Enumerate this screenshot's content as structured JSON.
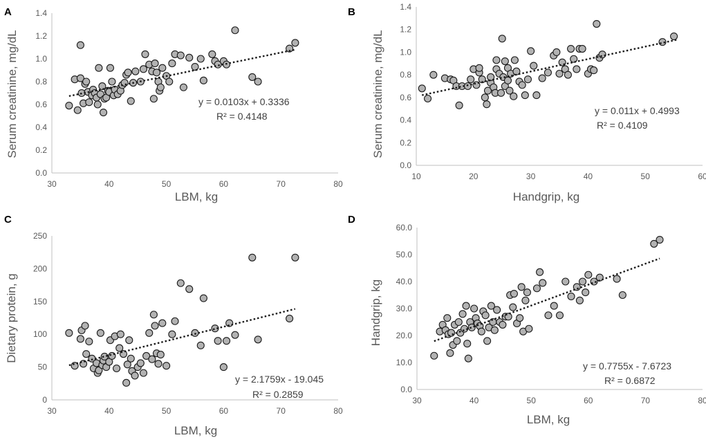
{
  "chart_data": [
    {
      "type": "scatter",
      "panel_label": "A",
      "xlabel": "LBM, kg",
      "ylabel": "Serum creatinine, mg/dL",
      "xlim": [
        30,
        80
      ],
      "ylim": [
        0,
        1.4
      ],
      "x_ticks": [
        "30",
        "40",
        "50",
        "60",
        "70",
        "80"
      ],
      "y_ticks": [
        "0.0",
        "0.2",
        "0.4",
        "0.6",
        "0.8",
        "1.0",
        "1.2",
        "1.4"
      ],
      "trendline": {
        "slope": 0.0103,
        "intercept": 0.3336,
        "x_range": [
          33,
          72.5
        ]
      },
      "equation": "y = 0.0103x + 0.3336",
      "r2": "R² = 0.4148",
      "points": [
        [
          33,
          0.59
        ],
        [
          34,
          0.82
        ],
        [
          34.5,
          0.55
        ],
        [
          35,
          0.83
        ],
        [
          35,
          1.12
        ],
        [
          35.2,
          0.7
        ],
        [
          35.5,
          0.61
        ],
        [
          35.8,
          0.78
        ],
        [
          36,
          0.8
        ],
        [
          36.3,
          0.71
        ],
        [
          36.5,
          0.62
        ],
        [
          37,
          0.68
        ],
        [
          37.2,
          0.73
        ],
        [
          37.5,
          0.7
        ],
        [
          37.8,
          0.66
        ],
        [
          38,
          0.6
        ],
        [
          38.2,
          0.92
        ],
        [
          38.5,
          0.69
        ],
        [
          38.8,
          0.76
        ],
        [
          39,
          0.53
        ],
        [
          39.2,
          0.65
        ],
        [
          39.5,
          0.66
        ],
        [
          39.8,
          0.72
        ],
        [
          40,
          0.71
        ],
        [
          40.2,
          0.92
        ],
        [
          40.5,
          0.8
        ],
        [
          40.8,
          0.68
        ],
        [
          41,
          0.73
        ],
        [
          41.5,
          0.69
        ],
        [
          42,
          0.72
        ],
        [
          42.3,
          0.77
        ],
        [
          42.7,
          0.79
        ],
        [
          43,
          0.86
        ],
        [
          43.3,
          0.88
        ],
        [
          43.8,
          0.63
        ],
        [
          44.2,
          0.79
        ],
        [
          44.6,
          0.89
        ],
        [
          45.5,
          0.8
        ],
        [
          46,
          0.91
        ],
        [
          46.3,
          1.04
        ],
        [
          47,
          0.95
        ],
        [
          47.5,
          0.89
        ],
        [
          47.8,
          0.65
        ],
        [
          48,
          0.96
        ],
        [
          48.3,
          0.88
        ],
        [
          48.6,
          0.8
        ],
        [
          48.8,
          0.72
        ],
        [
          49,
          0.75
        ],
        [
          49.3,
          0.92
        ],
        [
          50,
          0.85
        ],
        [
          50.5,
          0.8
        ],
        [
          51,
          0.96
        ],
        [
          51.5,
          1.04
        ],
        [
          52.5,
          1.03
        ],
        [
          53,
          0.75
        ],
        [
          54,
          1.01
        ],
        [
          55,
          0.93
        ],
        [
          56,
          1.0
        ],
        [
          56.5,
          0.81
        ],
        [
          58,
          1.04
        ],
        [
          58.5,
          0.98
        ],
        [
          59,
          0.95
        ],
        [
          60,
          0.98
        ],
        [
          60.5,
          0.95
        ],
        [
          62,
          1.25
        ],
        [
          65,
          0.84
        ],
        [
          66,
          0.8
        ],
        [
          71.5,
          1.09
        ],
        [
          72.5,
          1.14
        ]
      ]
    },
    {
      "type": "scatter",
      "panel_label": "B",
      "xlabel": "Handgrip, kg",
      "ylabel": "Serum creatinine, mg/dL",
      "xlim": [
        10,
        60
      ],
      "ylim": [
        0,
        1.4
      ],
      "x_ticks": [
        "10",
        "20",
        "30",
        "40",
        "50",
        "60"
      ],
      "y_ticks": [
        "0.0",
        "0.2",
        "0.4",
        "0.6",
        "0.8",
        "1.0",
        "1.2",
        "1.4"
      ],
      "trendline": {
        "slope": 0.011,
        "intercept": 0.4993,
        "x_range": [
          11,
          55.5
        ]
      },
      "equation": "y = 0.011x + 0.4993",
      "r2": "R² = 0.4109",
      "points": [
        [
          11,
          0.68
        ],
        [
          12,
          0.59
        ],
        [
          13,
          0.8
        ],
        [
          15,
          0.77
        ],
        [
          16,
          0.76
        ],
        [
          16.5,
          0.75
        ],
        [
          17,
          0.7
        ],
        [
          17.5,
          0.53
        ],
        [
          18,
          0.7
        ],
        [
          19,
          0.7
        ],
        [
          19.5,
          0.76
        ],
        [
          20,
          0.85
        ],
        [
          20.5,
          0.71
        ],
        [
          21,
          0.82
        ],
        [
          21,
          0.86
        ],
        [
          21.5,
          0.76
        ],
        [
          22,
          0.6
        ],
        [
          22.3,
          0.54
        ],
        [
          22.5,
          0.66
        ],
        [
          23,
          0.73
        ],
        [
          23,
          0.78
        ],
        [
          23.5,
          0.69
        ],
        [
          23.8,
          0.64
        ],
        [
          24,
          0.93
        ],
        [
          24,
          0.85
        ],
        [
          24.5,
          0.81
        ],
        [
          24.8,
          0.64
        ],
        [
          25,
          1.12
        ],
        [
          25.2,
          0.78
        ],
        [
          25.5,
          0.92
        ],
        [
          25.5,
          0.7
        ],
        [
          26,
          0.86
        ],
        [
          26,
          0.75
        ],
        [
          26.3,
          0.66
        ],
        [
          26.5,
          0.81
        ],
        [
          27,
          0.61
        ],
        [
          27.2,
          0.93
        ],
        [
          27.5,
          0.83
        ],
        [
          28,
          0.74
        ],
        [
          28.5,
          0.71
        ],
        [
          29,
          0.62
        ],
        [
          29.5,
          0.76
        ],
        [
          30,
          1.01
        ],
        [
          30.5,
          0.88
        ],
        [
          31,
          0.62
        ],
        [
          32,
          0.77
        ],
        [
          33,
          0.82
        ],
        [
          34,
          0.97
        ],
        [
          34.5,
          1.0
        ],
        [
          35,
          0.81
        ],
        [
          35.5,
          0.91
        ],
        [
          36,
          0.85
        ],
        [
          36.5,
          0.8
        ],
        [
          37,
          1.03
        ],
        [
          37.5,
          0.94
        ],
        [
          38,
          0.85
        ],
        [
          38.5,
          1.03
        ],
        [
          39,
          1.03
        ],
        [
          40,
          0.81
        ],
        [
          40.5,
          0.85
        ],
        [
          41,
          0.84
        ],
        [
          41.5,
          1.25
        ],
        [
          42,
          0.95
        ],
        [
          42.5,
          0.98
        ],
        [
          53,
          1.09
        ],
        [
          55,
          1.14
        ]
      ]
    },
    {
      "type": "scatter",
      "panel_label": "C",
      "xlabel": "LBM, kg",
      "ylabel": "Dietary protein, g",
      "xlim": [
        30,
        80
      ],
      "ylim": [
        0,
        250
      ],
      "x_ticks": [
        "30",
        "40",
        "50",
        "60",
        "70",
        "80"
      ],
      "y_ticks": [
        "0",
        "50",
        "100",
        "150",
        "200",
        "250"
      ],
      "trendline": {
        "slope": 2.1759,
        "intercept": -19.045,
        "x_range": [
          33,
          72.5
        ]
      },
      "equation": "y = 2.1759x - 19.045",
      "r2": "R² = 0.2859",
      "points": [
        [
          33,
          102
        ],
        [
          34,
          52
        ],
        [
          35,
          93
        ],
        [
          35.2,
          106
        ],
        [
          35.5,
          55
        ],
        [
          35.8,
          113
        ],
        [
          36,
          70
        ],
        [
          36.5,
          89
        ],
        [
          37,
          63
        ],
        [
          37.3,
          48
        ],
        [
          37.8,
          56
        ],
        [
          38,
          41
        ],
        [
          38.2,
          45
        ],
        [
          38.5,
          102
        ],
        [
          38.8,
          53
        ],
        [
          39,
          60
        ],
        [
          39.2,
          66
        ],
        [
          39.5,
          50
        ],
        [
          40,
          58
        ],
        [
          40.2,
          91
        ],
        [
          40.5,
          67
        ],
        [
          41,
          97
        ],
        [
          41.3,
          48
        ],
        [
          41.8,
          79
        ],
        [
          42,
          100
        ],
        [
          42.5,
          70
        ],
        [
          43,
          26
        ],
        [
          43.2,
          54
        ],
        [
          43.5,
          91
        ],
        [
          43.8,
          63
        ],
        [
          44,
          44
        ],
        [
          44.5,
          37
        ],
        [
          45,
          50
        ],
        [
          45.5,
          56
        ],
        [
          46,
          41
        ],
        [
          46.5,
          67
        ],
        [
          47,
          102
        ],
        [
          47.5,
          62
        ],
        [
          47.8,
          130
        ],
        [
          48,
          113
        ],
        [
          48.3,
          71
        ],
        [
          48.6,
          55
        ],
        [
          49,
          69
        ],
        [
          49.3,
          117
        ],
        [
          50,
          52
        ],
        [
          51,
          100
        ],
        [
          51.5,
          120
        ],
        [
          52.5,
          178
        ],
        [
          54,
          169
        ],
        [
          55,
          102
        ],
        [
          56,
          83
        ],
        [
          56.5,
          155
        ],
        [
          58.5,
          109
        ],
        [
          59,
          90
        ],
        [
          60,
          50
        ],
        [
          60.5,
          90
        ],
        [
          61,
          117
        ],
        [
          62,
          99
        ],
        [
          65,
          217
        ],
        [
          66,
          92
        ],
        [
          71.5,
          124
        ],
        [
          72.5,
          217
        ]
      ]
    },
    {
      "type": "scatter",
      "panel_label": "D",
      "xlabel": "LBM, kg",
      "ylabel": "Handgrip, kg",
      "xlim": [
        30,
        80
      ],
      "ylim": [
        0,
        60
      ],
      "x_ticks": [
        "30",
        "40",
        "50",
        "60",
        "70",
        "80"
      ],
      "y_ticks": [
        "0.0",
        "10.0",
        "20.0",
        "30.0",
        "40.0",
        "50.0",
        "60.0"
      ],
      "trendline": {
        "slope": 0.7755,
        "intercept": -7.6723,
        "x_range": [
          33,
          72.5
        ]
      },
      "equation": "y = 0.7755x - 7.6723",
      "r2": "R² = 0.6872",
      "points": [
        [
          33,
          12.5
        ],
        [
          34,
          21.5
        ],
        [
          34.5,
          24
        ],
        [
          35,
          22
        ],
        [
          35.3,
          26.5
        ],
        [
          35.5,
          20.5
        ],
        [
          35.8,
          13.5
        ],
        [
          36,
          21
        ],
        [
          36.3,
          16.5
        ],
        [
          36.6,
          24
        ],
        [
          37,
          18
        ],
        [
          37.3,
          25
        ],
        [
          37.6,
          21
        ],
        [
          38,
          28
        ],
        [
          38.3,
          22.5
        ],
        [
          38.6,
          31
        ],
        [
          38.8,
          17
        ],
        [
          39,
          11.5
        ],
        [
          39.3,
          25
        ],
        [
          39.6,
          23
        ],
        [
          40,
          30
        ],
        [
          40.3,
          26.5
        ],
        [
          40.6,
          24.5
        ],
        [
          41,
          23.5
        ],
        [
          41.3,
          21.5
        ],
        [
          41.6,
          29
        ],
        [
          42,
          27.5
        ],
        [
          42.3,
          18
        ],
        [
          42.6,
          23
        ],
        [
          43,
          31
        ],
        [
          43.3,
          25
        ],
        [
          43.6,
          22
        ],
        [
          44,
          29.5
        ],
        [
          44.5,
          25
        ],
        [
          45,
          24
        ],
        [
          45.5,
          27
        ],
        [
          46,
          27
        ],
        [
          46.3,
          35
        ],
        [
          46.8,
          30.5
        ],
        [
          47,
          35.5
        ],
        [
          47.5,
          24.5
        ],
        [
          48,
          26.5
        ],
        [
          48.3,
          38
        ],
        [
          48.6,
          21.5
        ],
        [
          49,
          33
        ],
        [
          49.3,
          36
        ],
        [
          49.6,
          22.5
        ],
        [
          51,
          37.5
        ],
        [
          51.5,
          43.5
        ],
        [
          52,
          39.5
        ],
        [
          53,
          27.5
        ],
        [
          54,
          31
        ],
        [
          55,
          27.5
        ],
        [
          56,
          40
        ],
        [
          57,
          34.5
        ],
        [
          58,
          38
        ],
        [
          58.5,
          33
        ],
        [
          59,
          40
        ],
        [
          59.5,
          36
        ],
        [
          60,
          42.5
        ],
        [
          61,
          40
        ],
        [
          62,
          41.5
        ],
        [
          65,
          41
        ],
        [
          66,
          35
        ],
        [
          71.5,
          54
        ],
        [
          72.5,
          55.5
        ]
      ]
    }
  ]
}
